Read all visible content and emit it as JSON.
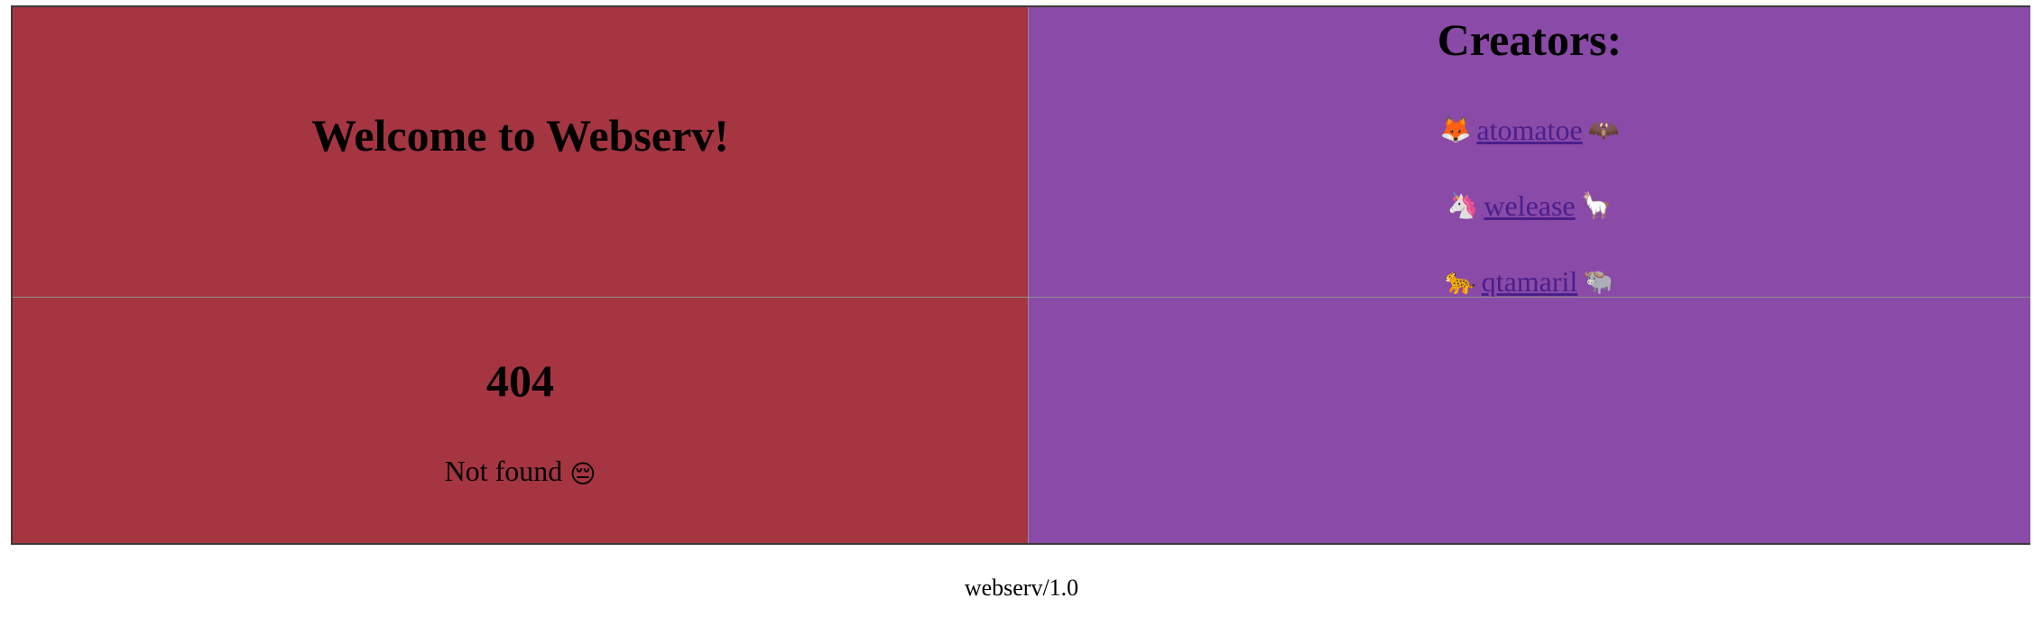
{
  "welcome": {
    "title": "Welcome to Webserv!"
  },
  "creators": {
    "title": "Creators:",
    "items": [
      {
        "left_emoji": "🦊",
        "name": "atomatoe",
        "right_emoji": "🦇"
      },
      {
        "left_emoji": "🦄",
        "name": "welease",
        "right_emoji": "🦙"
      },
      {
        "left_emoji": "🐆",
        "name": "qtamaril",
        "right_emoji": "🐃"
      }
    ]
  },
  "error": {
    "code": "404",
    "message": "Not found",
    "emoji": "😔"
  },
  "footer": {
    "text": "webserv/1.0"
  },
  "colors": {
    "red_cell": "#a53540",
    "purple_cell": "#8a4aa7",
    "link": "#4b1f8c"
  }
}
